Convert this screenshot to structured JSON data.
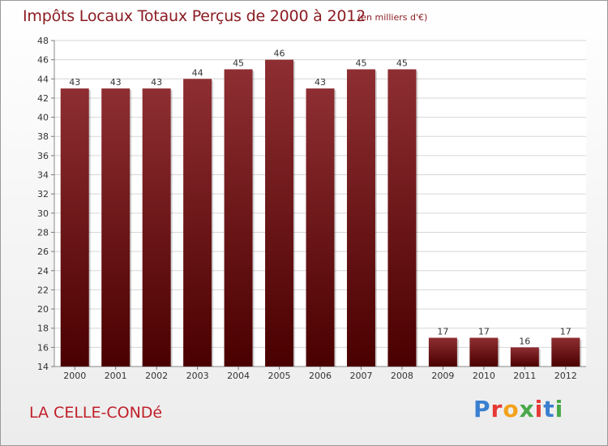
{
  "header": {
    "title": "Impôts Locaux Totaux Perçus de 2000 à 2012",
    "unit_note": "(en milliers d'€)"
  },
  "footer": {
    "place_name": "LA CELLE-CONDé",
    "logo_letters": [
      "P",
      "r",
      "o",
      "x",
      "i",
      "t",
      "i"
    ],
    "logo_colors": [
      "#3a7fd0",
      "#e53935",
      "#f2a21c",
      "#49a84a",
      "#e53935",
      "#3a7fd0",
      "#49a84a"
    ]
  },
  "colors": {
    "bar_top": "#8e2e32",
    "bar_bottom": "#4a0000",
    "text": "#333333",
    "accent": "#8b1c22"
  },
  "chart_data": {
    "type": "bar",
    "categories": [
      "2000",
      "2001",
      "2002",
      "2003",
      "2004",
      "2005",
      "2006",
      "2007",
      "2008",
      "2009",
      "2010",
      "2011",
      "2012"
    ],
    "values": [
      43,
      43,
      43,
      44,
      45,
      46,
      43,
      45,
      45,
      17,
      17,
      16,
      17
    ],
    "data_labels": [
      "43",
      "43",
      "43",
      "44",
      "45",
      "46",
      "43",
      "45",
      "45",
      "17",
      "17",
      "16",
      "17"
    ],
    "ylim": [
      14,
      48
    ],
    "yticks": [
      14,
      16,
      18,
      20,
      22,
      24,
      26,
      28,
      30,
      32,
      34,
      36,
      38,
      40,
      42,
      44,
      46,
      48
    ],
    "grid": true
  }
}
